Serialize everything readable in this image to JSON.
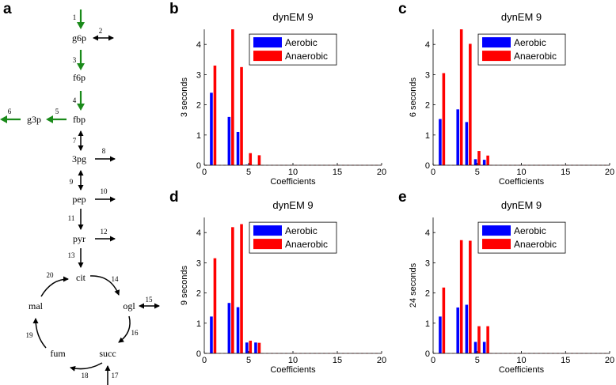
{
  "panel_labels": [
    "a",
    "b",
    "c",
    "d",
    "e"
  ],
  "diagram": {
    "nodes": [
      "g6p",
      "f6p",
      "fbp",
      "g3p",
      "3pg",
      "pep",
      "pyr",
      "cit",
      "ogl",
      "mal",
      "fum",
      "succ"
    ],
    "reactions": [
      "1",
      "2",
      "3",
      "4",
      "5",
      "6",
      "7",
      "8",
      "9",
      "10",
      "11",
      "12",
      "13",
      "14",
      "15",
      "16",
      "17",
      "18",
      "19",
      "20"
    ],
    "colors": {
      "highlight": "#1a8a1a",
      "default": "#000000"
    }
  },
  "chart_data": [
    {
      "type": "bar",
      "panel": "b",
      "title": "dynEM 9",
      "xlabel": "Coefficients",
      "ylabel": "3 seconds",
      "xlim": [
        0,
        20
      ],
      "ylim": [
        0,
        4.5
      ],
      "xticks": [
        "0",
        "5",
        "10",
        "15",
        "20"
      ],
      "yticks": [
        "0",
        "1",
        "2",
        "3",
        "4"
      ],
      "legend": "top-right",
      "x": [
        1,
        2,
        3,
        4,
        5,
        6,
        7,
        8,
        9,
        10,
        11,
        12,
        13,
        14,
        15,
        16,
        17,
        18,
        19,
        20
      ],
      "series": [
        {
          "name": "Aerobic",
          "color": "#0000ff",
          "values": [
            2.4,
            0,
            1.6,
            1.1,
            0.02,
            0,
            0,
            0,
            0,
            0,
            0,
            0,
            0,
            0,
            0,
            0,
            0,
            0,
            0,
            0
          ]
        },
        {
          "name": "Anaerobic",
          "color": "#ff0000",
          "values": [
            3.3,
            0,
            4.5,
            3.25,
            0.4,
            0.33,
            0,
            0,
            0,
            0,
            0,
            0,
            0,
            0,
            0,
            0,
            0,
            0,
            0,
            0
          ]
        }
      ]
    },
    {
      "type": "bar",
      "panel": "c",
      "title": "dynEM 9",
      "xlabel": "Coefficients",
      "ylabel": "6 seconds",
      "xlim": [
        0,
        20
      ],
      "ylim": [
        0,
        4.5
      ],
      "xticks": [
        "0",
        "5",
        "10",
        "15",
        "20"
      ],
      "yticks": [
        "0",
        "1",
        "2",
        "3",
        "4"
      ],
      "legend": "top-right",
      "x": [
        1,
        2,
        3,
        4,
        5,
        6,
        7,
        8,
        9,
        10,
        11,
        12,
        13,
        14,
        15,
        16,
        17,
        18,
        19,
        20
      ],
      "series": [
        {
          "name": "Aerobic",
          "color": "#0000ff",
          "values": [
            1.53,
            0,
            1.85,
            1.43,
            0.2,
            0.18,
            0,
            0,
            0,
            0,
            0,
            0,
            0,
            0,
            0,
            0,
            0,
            0,
            0,
            0
          ]
        },
        {
          "name": "Anaerobic",
          "color": "#ff0000",
          "values": [
            3.05,
            0,
            4.5,
            4.02,
            0.47,
            0.32,
            0,
            0,
            0,
            0,
            0,
            0,
            0,
            0,
            0,
            0,
            0,
            0,
            0,
            0
          ]
        }
      ]
    },
    {
      "type": "bar",
      "panel": "d",
      "title": "dynEM 9",
      "xlabel": "Coefficients",
      "ylabel": "9 seconds",
      "xlim": [
        0,
        20
      ],
      "ylim": [
        0,
        4.5
      ],
      "xticks": [
        "0",
        "5",
        "10",
        "15",
        "20"
      ],
      "yticks": [
        "0",
        "1",
        "2",
        "3",
        "4"
      ],
      "legend": "top-right",
      "x": [
        1,
        2,
        3,
        4,
        5,
        6,
        7,
        8,
        9,
        10,
        11,
        12,
        13,
        14,
        15,
        16,
        17,
        18,
        19,
        20
      ],
      "series": [
        {
          "name": "Aerobic",
          "color": "#0000ff",
          "values": [
            1.22,
            0,
            1.67,
            1.53,
            0.36,
            0.36,
            0,
            0,
            0,
            0,
            0,
            0,
            0,
            0,
            0,
            0,
            0,
            0,
            0,
            0
          ]
        },
        {
          "name": "Anaerobic",
          "color": "#ff0000",
          "values": [
            3.15,
            0,
            4.18,
            4.28,
            0.42,
            0.35,
            0,
            0,
            0,
            0,
            0,
            0,
            0,
            0,
            0,
            0,
            0,
            0,
            0,
            0
          ]
        }
      ]
    },
    {
      "type": "bar",
      "panel": "e",
      "title": "dynEM 9",
      "xlabel": "Coefficients",
      "ylabel": "24 seconds",
      "xlim": [
        0,
        20
      ],
      "ylim": [
        0,
        4.5
      ],
      "xticks": [
        "0",
        "5",
        "10",
        "15",
        "20"
      ],
      "yticks": [
        "0",
        "1",
        "2",
        "3",
        "4"
      ],
      "legend": "top-right",
      "x": [
        1,
        2,
        3,
        4,
        5,
        6,
        7,
        8,
        9,
        10,
        11,
        12,
        13,
        14,
        15,
        16,
        17,
        18,
        19,
        20
      ],
      "series": [
        {
          "name": "Aerobic",
          "color": "#0000ff",
          "values": [
            1.22,
            0,
            1.52,
            1.61,
            0.38,
            0.38,
            0,
            0,
            0,
            0,
            0,
            0,
            0,
            0,
            0,
            0,
            0,
            0,
            0,
            0
          ]
        },
        {
          "name": "Anaerobic",
          "color": "#ff0000",
          "values": [
            2.18,
            0,
            3.75,
            3.73,
            0.9,
            0.9,
            0,
            0,
            0,
            0,
            0,
            0,
            0,
            0,
            0,
            0,
            0,
            0,
            0,
            0
          ]
        }
      ]
    }
  ]
}
